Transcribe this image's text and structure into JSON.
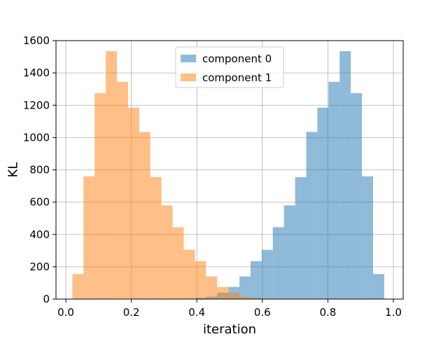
{
  "chart_data": {
    "type": "bar",
    "subtype": "histogram",
    "title": "",
    "xlabel": "iteration",
    "ylabel": "KL",
    "xlim": [
      -0.03,
      1.03
    ],
    "ylim": [
      0,
      1600
    ],
    "xticks": [
      0.0,
      0.2,
      0.4,
      0.6,
      0.8,
      1.0
    ],
    "xtick_labels": [
      "0.0",
      "0.2",
      "0.4",
      "0.6",
      "0.8",
      "1.0"
    ],
    "yticks": [
      0,
      200,
      400,
      600,
      800,
      1000,
      1200,
      1400,
      1600
    ],
    "ytick_labels": [
      "0",
      "200",
      "400",
      "600",
      "800",
      "1000",
      "1200",
      "1400",
      "1600"
    ],
    "grid": true,
    "legend_position": "top-center",
    "opacity": 0.5,
    "bin_edges": [
      0.02,
      0.054,
      0.088,
      0.122,
      0.156,
      0.19,
      0.224,
      0.258,
      0.292,
      0.326,
      0.36,
      0.394,
      0.428,
      0.462,
      0.496,
      0.53,
      0.564,
      0.598,
      0.632,
      0.666,
      0.7,
      0.734,
      0.768,
      0.802,
      0.836,
      0.87,
      0.904,
      0.938,
      0.972
    ],
    "series": [
      {
        "name": "component 0",
        "color": "#1f77b4",
        "values": [
          0,
          0,
          0,
          0,
          0,
          0,
          0,
          0,
          0,
          1,
          3,
          8,
          15,
          40,
          75,
          140,
          235,
          305,
          445,
          580,
          755,
          1035,
          1185,
          1345,
          1535,
          1275,
          760,
          155
        ]
      },
      {
        "name": "component 1",
        "color": "#ff7f0e",
        "values": [
          155,
          760,
          1275,
          1535,
          1345,
          1185,
          1035,
          755,
          580,
          445,
          305,
          235,
          140,
          75,
          40,
          15,
          8,
          3,
          1,
          0,
          0,
          0,
          0,
          0,
          0,
          0,
          0,
          0
        ]
      }
    ]
  }
}
